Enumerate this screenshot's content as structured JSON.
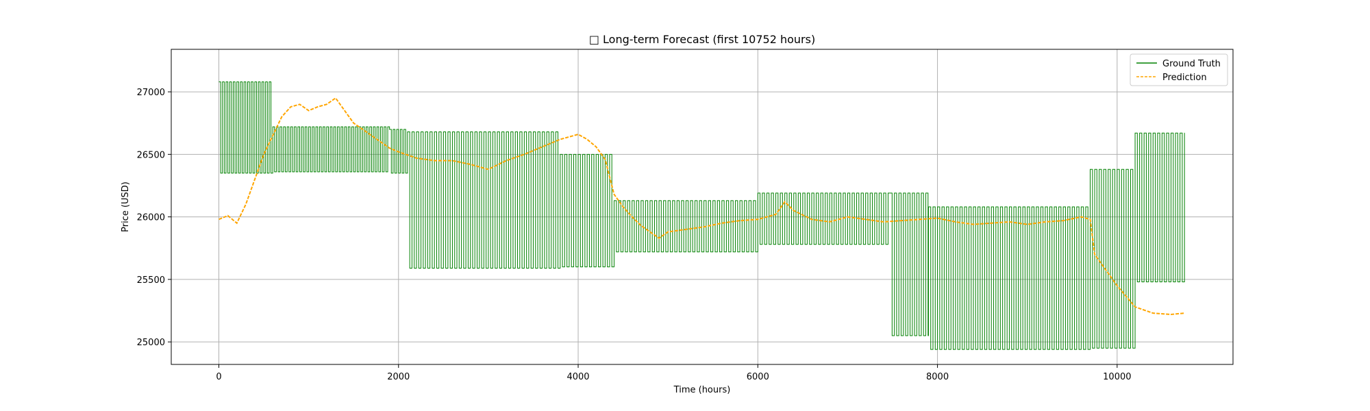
{
  "chart_data": {
    "type": "line",
    "title": "□ Long-term Forecast (first 10752 hours)",
    "xlabel": "Time (hours)",
    "ylabel": "Price (USD)",
    "xlim": [
      -530,
      11290
    ],
    "ylim": [
      24820,
      27340
    ],
    "xticks": [
      0,
      2000,
      4000,
      6000,
      8000,
      10000
    ],
    "yticks": [
      25000,
      25500,
      26000,
      26500,
      27000
    ],
    "grid": true,
    "legend_position": "top-right",
    "series": [
      {
        "name": "Ground Truth",
        "color": "#008000",
        "style": "solid",
        "segments": [
          {
            "x_start": 0,
            "x_end": 600,
            "period": 40,
            "low": 26350,
            "high": 27080
          },
          {
            "x_start": 600,
            "x_end": 1900,
            "period": 40,
            "low": 26360,
            "high": 26720
          },
          {
            "x_start": 1900,
            "x_end": 2100,
            "period": 40,
            "low": 26350,
            "high": 26700
          },
          {
            "x_start": 2100,
            "x_end": 3800,
            "period": 50,
            "low": 25590,
            "high": 26680
          },
          {
            "x_start": 3800,
            "x_end": 4400,
            "period": 50,
            "low": 25600,
            "high": 26500
          },
          {
            "x_start": 4400,
            "x_end": 5200,
            "period": 50,
            "low": 25720,
            "high": 26130
          },
          {
            "x_start": 5200,
            "x_end": 6000,
            "period": 50,
            "low": 25720,
            "high": 26130
          },
          {
            "x_start": 6000,
            "x_end": 7470,
            "period": 50,
            "low": 25780,
            "high": 26190
          },
          {
            "x_start": 7470,
            "x_end": 7900,
            "period": 50,
            "low": 25050,
            "high": 26190
          },
          {
            "x_start": 7900,
            "x_end": 9700,
            "period": 50,
            "low": 24940,
            "high": 26080
          },
          {
            "x_start": 9700,
            "x_end": 10200,
            "period": 50,
            "low": 24950,
            "high": 26380
          },
          {
            "x_start": 10200,
            "x_end": 10752,
            "period": 50,
            "low": 25480,
            "high": 26670
          }
        ]
      },
      {
        "name": "Prediction",
        "color": "#ffa500",
        "style": "dashed",
        "points": [
          [
            0,
            25980
          ],
          [
            100,
            26010
          ],
          [
            200,
            25950
          ],
          [
            300,
            26100
          ],
          [
            400,
            26300
          ],
          [
            500,
            26500
          ],
          [
            600,
            26650
          ],
          [
            700,
            26800
          ],
          [
            800,
            26880
          ],
          [
            900,
            26900
          ],
          [
            1000,
            26850
          ],
          [
            1100,
            26880
          ],
          [
            1200,
            26900
          ],
          [
            1300,
            26950
          ],
          [
            1400,
            26850
          ],
          [
            1500,
            26750
          ],
          [
            1600,
            26700
          ],
          [
            1700,
            26650
          ],
          [
            1800,
            26600
          ],
          [
            1900,
            26550
          ],
          [
            2000,
            26520
          ],
          [
            2200,
            26470
          ],
          [
            2400,
            26450
          ],
          [
            2600,
            26450
          ],
          [
            2800,
            26420
          ],
          [
            3000,
            26380
          ],
          [
            3200,
            26450
          ],
          [
            3400,
            26500
          ],
          [
            3600,
            26560
          ],
          [
            3800,
            26620
          ],
          [
            4000,
            26660
          ],
          [
            4100,
            26620
          ],
          [
            4200,
            26560
          ],
          [
            4300,
            26460
          ],
          [
            4400,
            26180
          ],
          [
            4500,
            26080
          ],
          [
            4600,
            26000
          ],
          [
            4700,
            25930
          ],
          [
            4800,
            25880
          ],
          [
            4900,
            25830
          ],
          [
            5000,
            25880
          ],
          [
            5200,
            25900
          ],
          [
            5400,
            25920
          ],
          [
            5600,
            25950
          ],
          [
            5800,
            25970
          ],
          [
            6000,
            25980
          ],
          [
            6200,
            26020
          ],
          [
            6300,
            26120
          ],
          [
            6400,
            26050
          ],
          [
            6600,
            25980
          ],
          [
            6800,
            25960
          ],
          [
            7000,
            26000
          ],
          [
            7200,
            25980
          ],
          [
            7400,
            25960
          ],
          [
            7600,
            25970
          ],
          [
            7800,
            25980
          ],
          [
            8000,
            25990
          ],
          [
            8200,
            25960
          ],
          [
            8400,
            25940
          ],
          [
            8600,
            25950
          ],
          [
            8800,
            25960
          ],
          [
            9000,
            25940
          ],
          [
            9200,
            25960
          ],
          [
            9400,
            25970
          ],
          [
            9600,
            26000
          ],
          [
            9700,
            25980
          ],
          [
            9750,
            25700
          ],
          [
            9850,
            25600
          ],
          [
            10000,
            25450
          ],
          [
            10200,
            25280
          ],
          [
            10400,
            25230
          ],
          [
            10600,
            25220
          ],
          [
            10752,
            25230
          ]
        ]
      }
    ]
  }
}
